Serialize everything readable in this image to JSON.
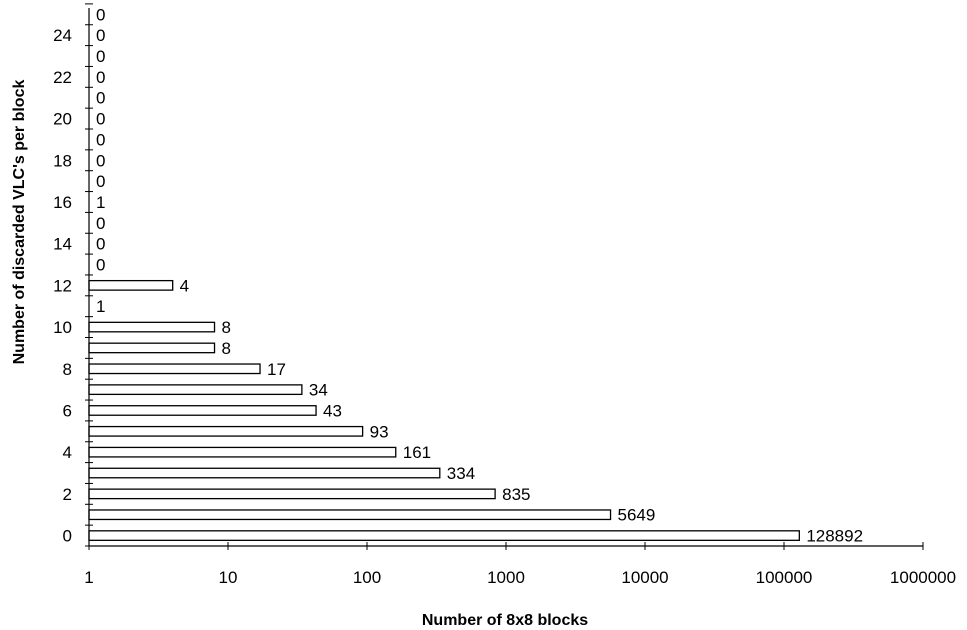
{
  "chart_data": {
    "type": "bar",
    "orientation": "horizontal",
    "xscale": "log",
    "xlim": [
      1,
      1000000
    ],
    "ylim": [
      0,
      25
    ],
    "xlabel": "Number of 8x8 blocks",
    "ylabel": "Number of discarded VLC's per block",
    "x_tick_labels": [
      "1",
      "10",
      "100",
      "1000",
      "10000",
      "100000",
      "1000000"
    ],
    "y_tick_labels": [
      "0",
      "2",
      "4",
      "6",
      "8",
      "10",
      "12",
      "14",
      "16",
      "18",
      "20",
      "22",
      "24"
    ],
    "categories": [
      0,
      1,
      2,
      3,
      4,
      5,
      6,
      7,
      8,
      9,
      10,
      11,
      12,
      13,
      14,
      15,
      16,
      17,
      18,
      19,
      20,
      21,
      22,
      23,
      24,
      25
    ],
    "values": [
      128892,
      5649,
      835,
      334,
      161,
      93,
      43,
      34,
      17,
      8,
      8,
      1,
      4,
      0,
      0,
      0,
      1,
      0,
      0,
      0,
      0,
      0,
      0,
      0,
      0,
      0
    ],
    "data_labels": [
      "128892",
      "5649",
      "835",
      "334",
      "161",
      "93",
      "43",
      "34",
      "17",
      "8",
      "8",
      "1",
      "4",
      "0",
      "0",
      "0",
      "1",
      "0",
      "0",
      "0",
      "0",
      "0",
      "0",
      "0",
      "0",
      "0"
    ],
    "bar_fill": "#ffffff",
    "bar_stroke": "#000000",
    "grid": false,
    "legend": "none"
  }
}
